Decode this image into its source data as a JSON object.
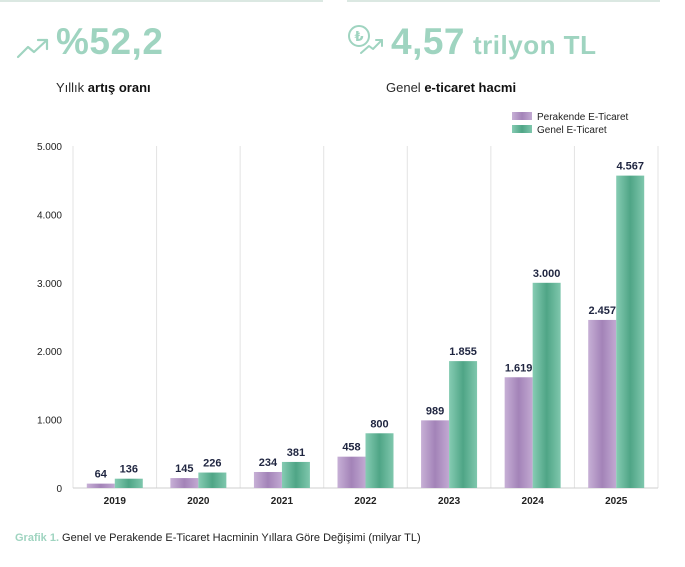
{
  "kpis": {
    "growth": {
      "value": "%52,2",
      "label_prefix": "Yıllık",
      "label_bold": "artış oranı",
      "icon": "trend-up-icon"
    },
    "volume": {
      "value": "4,57",
      "unit": "trilyon TL",
      "label_prefix": "Genel",
      "label_bold": "e-ticaret hacmi",
      "icon": "lira-growth-icon"
    }
  },
  "colors": {
    "accent": "#9fd4c0",
    "retail": "#b79ac8",
    "general": "#6cbca0"
  },
  "chart_data": {
    "type": "bar",
    "categories": [
      "2019",
      "2020",
      "2021",
      "2022",
      "2023",
      "2024",
      "2025"
    ],
    "series": [
      {
        "name": "Perakende E-Ticaret",
        "values": [
          64,
          145,
          234,
          458,
          989,
          1619,
          2457
        ]
      },
      {
        "name": "Genel E-Ticaret",
        "values": [
          136,
          226,
          381,
          800,
          1855,
          3000,
          4567
        ]
      }
    ],
    "value_labels": {
      "retail": [
        "64",
        "145",
        "234",
        "458",
        "989",
        "1.619",
        "2.457"
      ],
      "general": [
        "136",
        "226",
        "381",
        "800",
        "1.855",
        "3.000",
        "4.567"
      ]
    },
    "yticks": [
      0,
      1000,
      2000,
      3000,
      4000,
      5000
    ],
    "ytick_labels": [
      "0",
      "1.000",
      "2.000",
      "3.000",
      "4.000",
      "5.000"
    ],
    "ylim": [
      0,
      5000
    ],
    "grid": "vertical",
    "legend": "top-right"
  },
  "caption": {
    "label": "Grafik 1.",
    "text": "Genel ve Perakende E-Ticaret Hacminin Yıllara Göre Değişimi (milyar TL)"
  }
}
